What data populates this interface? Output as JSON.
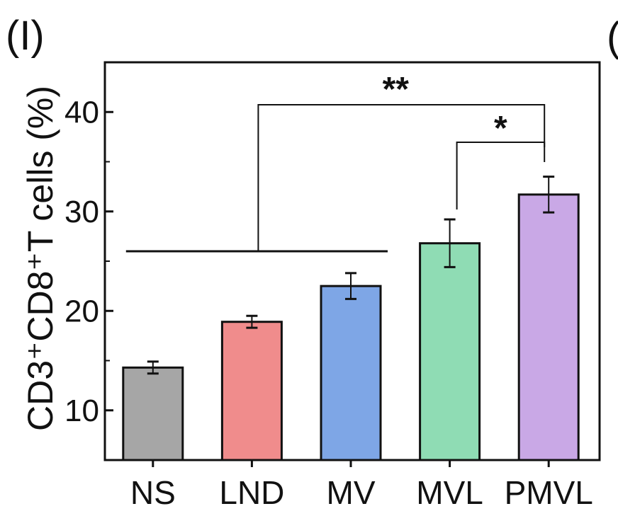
{
  "panel_label": "(I)",
  "partial_panel_label": "(",
  "chart_data": {
    "type": "bar",
    "title": "",
    "xlabel": "",
    "ylabel": "CD3⁺CD8⁺T cells (%)",
    "ylim": [
      5,
      45
    ],
    "yticks": [
      10,
      20,
      30,
      40
    ],
    "categories": [
      "NS",
      "LND",
      "MV",
      "MVL",
      "PMVL"
    ],
    "values": [
      14.3,
      18.9,
      22.5,
      26.8,
      31.7
    ],
    "errors": [
      0.6,
      0.6,
      1.3,
      2.4,
      1.8
    ],
    "colors": [
      "#a6a6a6",
      "#f08c8c",
      "#7ea6e6",
      "#8fdcb4",
      "#c9a8e6"
    ],
    "significance": [
      {
        "label": "**",
        "left_group": [
          "NS",
          "LND",
          "MV"
        ],
        "right": "PMVL"
      },
      {
        "label": "*",
        "left": "MVL",
        "right": "PMVL"
      }
    ]
  }
}
